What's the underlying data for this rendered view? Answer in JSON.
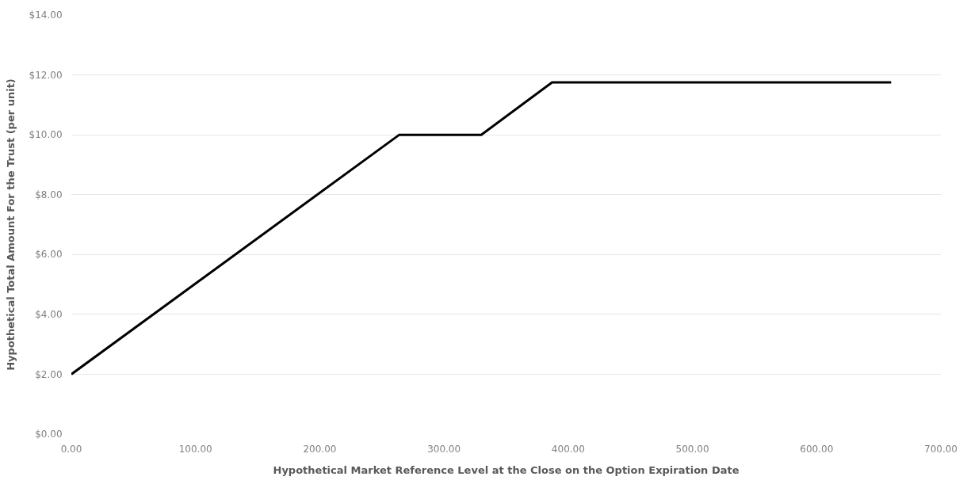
{
  "chart_data": {
    "type": "line",
    "xlabel": "Hypothetical Market Reference Level at the Close on the Option Expiration Date",
    "ylabel": "Hypothetical Total Amount For the Trust (per unit)",
    "x": [
      0,
      264,
      330,
      387,
      660
    ],
    "series": [
      {
        "color": "#000000",
        "values": [
          2,
          10,
          10,
          11.75,
          11.75
        ]
      }
    ],
    "xlim": [
      0,
      700
    ],
    "xticks": [
      {
        "value": 0,
        "label": "0.00"
      },
      {
        "value": 100,
        "label": "100.00"
      },
      {
        "value": 200,
        "label": "200.00"
      },
      {
        "value": 300,
        "label": "300.00"
      },
      {
        "value": 400,
        "label": "400.00"
      },
      {
        "value": 500,
        "label": "500.00"
      },
      {
        "value": 600,
        "label": "600.00"
      },
      {
        "value": 700,
        "label": "700.00"
      }
    ],
    "ylim": [
      0,
      14
    ],
    "yticks": [
      {
        "value": 0,
        "label": "$0.00"
      },
      {
        "value": 2,
        "label": "$2.00"
      },
      {
        "value": 4,
        "label": "$4.00"
      },
      {
        "value": 6,
        "label": "$6.00"
      },
      {
        "value": 8,
        "label": "$8.00"
      },
      {
        "value": 10,
        "label": "$10.00"
      },
      {
        "value": 12,
        "label": "$12.00"
      },
      {
        "value": 14,
        "label": "$14.00"
      }
    ],
    "grid": "y",
    "marker": "none",
    "line_style": "solid"
  }
}
